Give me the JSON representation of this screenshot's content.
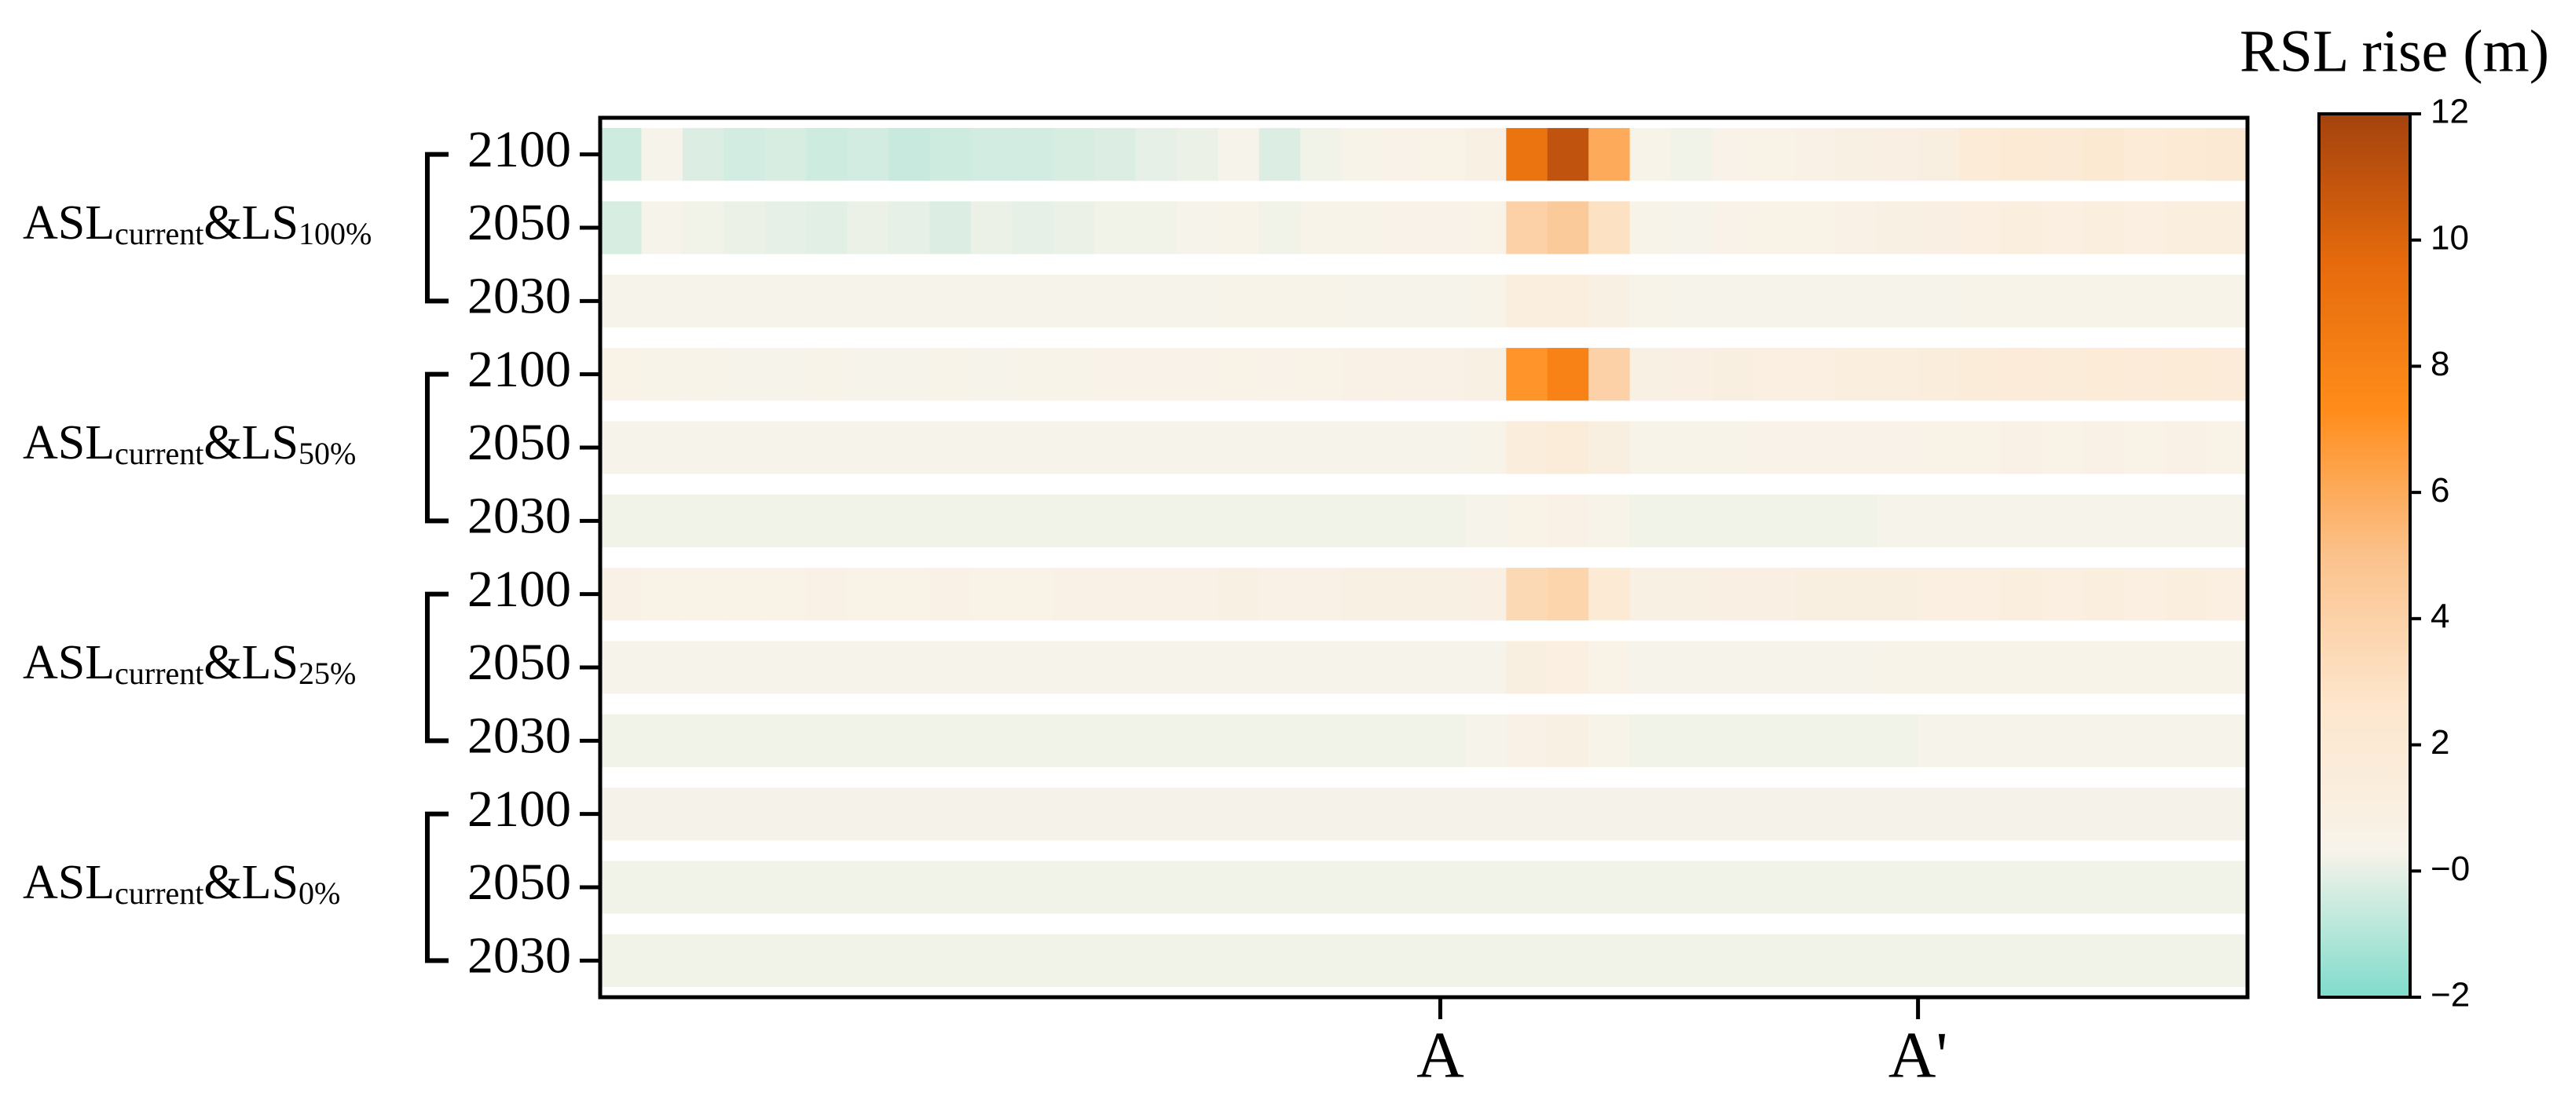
{
  "chart_data": {
    "type": "heatmap",
    "colorbar_title": "RSL rise (m)",
    "groups": [
      [
        "ASL",
        "current",
        "&LS",
        "100%"
      ],
      [
        "ASL",
        "current",
        "&LS",
        "50%"
      ],
      [
        "ASL",
        "current",
        "&LS",
        "25%"
      ],
      [
        "ASL",
        "current",
        "&LS",
        "0%"
      ]
    ],
    "rows": [
      "2100",
      "2050",
      "2030",
      "2100",
      "2050",
      "2030",
      "2100",
      "2050",
      "2030",
      "2100",
      "2050",
      "2030"
    ],
    "xlim": [
      0,
      40
    ],
    "xticks": [
      {
        "value": 20.4,
        "label": "A"
      },
      {
        "value": 32,
        "label": "A'"
      }
    ],
    "x": [
      0.5,
      1.5,
      2.5,
      3.5,
      4.5,
      5.5,
      6.5,
      7.5,
      8.5,
      9.5,
      10.5,
      11.5,
      12.5,
      13.5,
      14.5,
      15.5,
      16.5,
      17.5,
      18.5,
      19.5,
      20.5,
      21.5,
      22.5,
      23.5,
      24.5,
      25.5,
      26.5,
      27.5,
      28.5,
      29.5,
      30.5,
      31.5,
      32.5,
      33.5,
      34.5,
      35.5,
      36.5,
      37.5,
      38.5,
      39.5
    ],
    "zlim": [
      -2,
      12
    ],
    "zticks": [
      {
        "value": -2,
        "label": "−2"
      },
      {
        "value": 0,
        "label": "−0"
      },
      2,
      4,
      6,
      8,
      10,
      12
    ],
    "colors": [
      "#7fdccc",
      "#f8f3ea",
      "#fde6cc",
      "#fbc28c",
      "#ff8c1a",
      "#e56a0c",
      "#a4420e"
    ],
    "values": [
      [
        -0.5,
        0.3,
        -0.2,
        -0.4,
        -0.3,
        -0.5,
        -0.4,
        -0.6,
        -0.5,
        -0.4,
        -0.4,
        -0.3,
        -0.2,
        0,
        0.1,
        0.3,
        -0.2,
        0.2,
        0.4,
        0.5,
        0.6,
        0.8,
        9,
        11,
        6,
        0.4,
        0.2,
        0.5,
        0.6,
        0.7,
        0.8,
        0.9,
        1,
        1.8,
        2,
        1.9,
        2.2,
        1.8,
        2,
        2.1
      ],
      [
        -0.3,
        0.3,
        0.2,
        0.1,
        0,
        -0.1,
        0.1,
        0,
        -0.2,
        0.1,
        0,
        0.1,
        0.2,
        0.2,
        0.3,
        0.4,
        0.2,
        0.4,
        0.4,
        0.5,
        0.5,
        0.6,
        4,
        4.5,
        3,
        0.4,
        0.3,
        0.5,
        0.6,
        0.6,
        0.7,
        0.8,
        0.9,
        1.1,
        1.2,
        1.1,
        1.3,
        1.1,
        1.2,
        1.2
      ],
      [
        0.3,
        0.3,
        0.3,
        0.3,
        0.3,
        0.3,
        0.3,
        0.3,
        0.3,
        0.3,
        0.3,
        0.3,
        0.3,
        0.3,
        0.3,
        0.4,
        0.4,
        0.4,
        0.3,
        0.3,
        0.3,
        0.4,
        1.2,
        1.3,
        0.8,
        0.4,
        0.3,
        0.3,
        0.3,
        0.3,
        0.3,
        0.3,
        0.3,
        0.4,
        0.4,
        0.4,
        0.4,
        0.4,
        0.4,
        0.4
      ],
      [
        0.6,
        0.4,
        0.4,
        0.3,
        0.3,
        0.4,
        0.3,
        0.3,
        0.4,
        0.3,
        0.4,
        0.4,
        0.5,
        0.5,
        0.5,
        0.6,
        0.5,
        0.6,
        0.7,
        0.7,
        0.7,
        0.8,
        7,
        8,
        4,
        0.8,
        0.9,
        1,
        1.1,
        1.1,
        1.2,
        1.3,
        1.4,
        1.6,
        1.7,
        1.6,
        1.8,
        1.7,
        1.8,
        1.7
      ],
      [
        0.3,
        0.3,
        0.3,
        0.3,
        0.3,
        0.3,
        0.3,
        0.3,
        0.3,
        0.3,
        0.3,
        0.3,
        0.3,
        0.3,
        0.3,
        0.3,
        0.3,
        0.3,
        0.3,
        0.3,
        0.3,
        0.4,
        1.5,
        1.6,
        1,
        0.4,
        0.4,
        0.4,
        0.5,
        0.5,
        0.5,
        0.5,
        0.6,
        0.6,
        0.7,
        0.6,
        0.7,
        0.6,
        0.7,
        0.6
      ],
      [
        0.2,
        0.2,
        0.2,
        0.2,
        0.2,
        0.2,
        0.2,
        0.2,
        0.2,
        0.2,
        0.2,
        0.2,
        0.2,
        0.2,
        0.2,
        0.2,
        0.2,
        0.2,
        0.2,
        0.2,
        0.2,
        0.3,
        0.6,
        0.7,
        0.4,
        0.2,
        0.2,
        0.2,
        0.2,
        0.2,
        0.2,
        0.3,
        0.3,
        0.3,
        0.3,
        0.3,
        0.3,
        0.3,
        0.3,
        0.3
      ],
      [
        0.7,
        0.6,
        0.6,
        0.6,
        0.6,
        0.7,
        0.6,
        0.6,
        0.7,
        0.6,
        0.6,
        0.7,
        0.7,
        0.7,
        0.7,
        0.8,
        0.7,
        0.7,
        0.8,
        0.8,
        0.8,
        0.9,
        3.5,
        3.8,
        2,
        0.8,
        0.8,
        0.9,
        0.9,
        1,
        1,
        1,
        1.1,
        1.1,
        1.2,
        1.1,
        1.2,
        1.1,
        1.2,
        1.1
      ],
      [
        0.3,
        0.3,
        0.3,
        0.3,
        0.3,
        0.3,
        0.3,
        0.3,
        0.3,
        0.3,
        0.3,
        0.3,
        0.3,
        0.3,
        0.3,
        0.3,
        0.3,
        0.3,
        0.3,
        0.3,
        0.3,
        0.3,
        1,
        1.1,
        0.6,
        0.3,
        0.3,
        0.3,
        0.3,
        0.3,
        0.3,
        0.4,
        0.4,
        0.4,
        0.4,
        0.4,
        0.4,
        0.4,
        0.4,
        0.4
      ],
      [
        0.2,
        0.2,
        0.2,
        0.2,
        0.2,
        0.2,
        0.2,
        0.2,
        0.2,
        0.2,
        0.2,
        0.2,
        0.2,
        0.2,
        0.2,
        0.2,
        0.2,
        0.2,
        0.2,
        0.2,
        0.2,
        0.3,
        0.7,
        0.8,
        0.4,
        0.2,
        0.2,
        0.2,
        0.2,
        0.2,
        0.2,
        0.2,
        0.3,
        0.3,
        0.3,
        0.3,
        0.3,
        0.3,
        0.3,
        0.3
      ],
      [
        0.25,
        0.25,
        0.25,
        0.25,
        0.25,
        0.25,
        0.25,
        0.25,
        0.25,
        0.25,
        0.25,
        0.25,
        0.25,
        0.25,
        0.25,
        0.25,
        0.25,
        0.25,
        0.25,
        0.25,
        0.25,
        0.25,
        0.25,
        0.25,
        0.25,
        0.25,
        0.25,
        0.25,
        0.25,
        0.25,
        0.25,
        0.25,
        0.25,
        0.25,
        0.25,
        0.25,
        0.25,
        0.25,
        0.25,
        0.25
      ],
      [
        0.2,
        0.2,
        0.2,
        0.2,
        0.2,
        0.2,
        0.2,
        0.2,
        0.2,
        0.2,
        0.2,
        0.2,
        0.2,
        0.2,
        0.2,
        0.2,
        0.2,
        0.2,
        0.2,
        0.2,
        0.2,
        0.2,
        0.2,
        0.2,
        0.2,
        0.2,
        0.2,
        0.2,
        0.2,
        0.2,
        0.2,
        0.2,
        0.2,
        0.2,
        0.2,
        0.2,
        0.2,
        0.2,
        0.2,
        0.2
      ],
      [
        0.2,
        0.2,
        0.2,
        0.2,
        0.2,
        0.2,
        0.2,
        0.2,
        0.2,
        0.2,
        0.2,
        0.2,
        0.2,
        0.2,
        0.2,
        0.2,
        0.2,
        0.2,
        0.2,
        0.2,
        0.2,
        0.2,
        0.2,
        0.2,
        0.2,
        0.2,
        0.2,
        0.2,
        0.2,
        0.2,
        0.2,
        0.2,
        0.2,
        0.2,
        0.2,
        0.2,
        0.2,
        0.2,
        0.2,
        0.2
      ]
    ]
  }
}
